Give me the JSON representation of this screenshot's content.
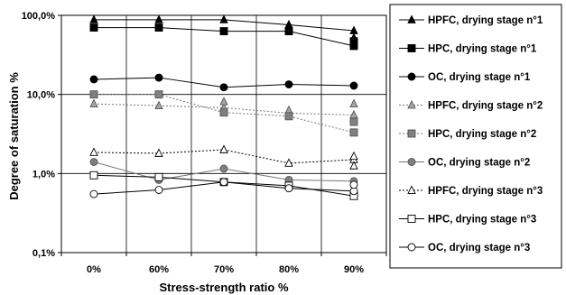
{
  "chart_data": {
    "type": "line",
    "title": "",
    "xlabel": "Stress-strength ratio %",
    "ylabel": "Degree of saturation %",
    "y_scale": "log",
    "ylim": [
      0.1,
      100
    ],
    "y_ticks": [
      {
        "value": 0.1,
        "label": "0,1%"
      },
      {
        "value": 1,
        "label": "1,0%"
      },
      {
        "value": 10,
        "label": "10,0%"
      },
      {
        "value": 100,
        "label": "100,0%"
      }
    ],
    "categories": [
      "0%",
      "60%",
      "70%",
      "80%",
      "90%"
    ],
    "grid": true,
    "legend_position": "right",
    "series": [
      {
        "name": "HPFC, drying stage n°1",
        "marker": "triangle",
        "fill": "#000000",
        "stroke": "#000000",
        "dash": "solid",
        "values": [
          88,
          88,
          88,
          76,
          64
        ],
        "extra_points": [
          {
            "x": "90%",
            "values": [
              52,
              47,
              44
            ]
          }
        ]
      },
      {
        "name": "HPC, drying stage n°1",
        "marker": "square",
        "fill": "#000000",
        "stroke": "#000000",
        "dash": "solid",
        "values": [
          70,
          70,
          63,
          63,
          41
        ],
        "extra_points": [
          {
            "x": "90%",
            "values": [
              47
            ]
          }
        ]
      },
      {
        "name": "OC, drying stage n°1",
        "marker": "circle",
        "fill": "#000000",
        "stroke": "#000000",
        "dash": "solid",
        "values": [
          15.5,
          16.3,
          12.3,
          13.4,
          12.9
        ],
        "extra_points": []
      },
      {
        "name": "HPFC, drying stage n°2",
        "marker": "triangle",
        "fill": "#a6a6a6",
        "stroke": "#555555",
        "dash": "dotted",
        "values": [
          7.6,
          7.2,
          6.8,
          5.8,
          5.5
        ],
        "extra_points": [
          {
            "x": "70%",
            "values": [
              8.1
            ]
          },
          {
            "x": "80%",
            "values": [
              6.3
            ]
          },
          {
            "x": "90%",
            "values": [
              7.6
            ]
          }
        ]
      },
      {
        "name": "HPC, drying stage n°2",
        "marker": "square",
        "fill": "#808080",
        "stroke": "#555555",
        "dash": "dotted",
        "values": [
          10,
          10,
          5.9,
          5.3,
          3.3
        ],
        "extra_points": [
          {
            "x": "90%",
            "values": [
              4.5
            ]
          }
        ]
      },
      {
        "name": "OC, drying stage n°2",
        "marker": "circle",
        "fill": "#808080",
        "stroke": "#555555",
        "dash": "solid",
        "values": [
          1.4,
          0.83,
          1.15,
          0.83,
          0.8
        ],
        "extra_points": []
      },
      {
        "name": "HPFC, drying stage n°3",
        "marker": "triangle",
        "fill": "#ffffff",
        "stroke": "#000000",
        "dash": "dotted",
        "values": [
          1.85,
          1.8,
          2.0,
          1.35,
          1.5
        ],
        "extra_points": [
          {
            "x": "90%",
            "values": [
              1.65,
              1.25
            ]
          }
        ]
      },
      {
        "name": "HPC, drying stage n°3",
        "marker": "square",
        "fill": "#ffffff",
        "stroke": "#000000",
        "dash": "solid",
        "values": [
          0.95,
          0.9,
          0.78,
          0.7,
          0.52
        ],
        "extra_points": []
      },
      {
        "name": "OC, drying stage n°3",
        "marker": "circle",
        "fill": "#ffffff",
        "stroke": "#000000",
        "dash": "solid",
        "values": [
          0.55,
          0.62,
          0.78,
          0.65,
          0.6
        ],
        "extra_points": [
          {
            "x": "90%",
            "values": [
              0.72
            ]
          }
        ]
      }
    ]
  }
}
